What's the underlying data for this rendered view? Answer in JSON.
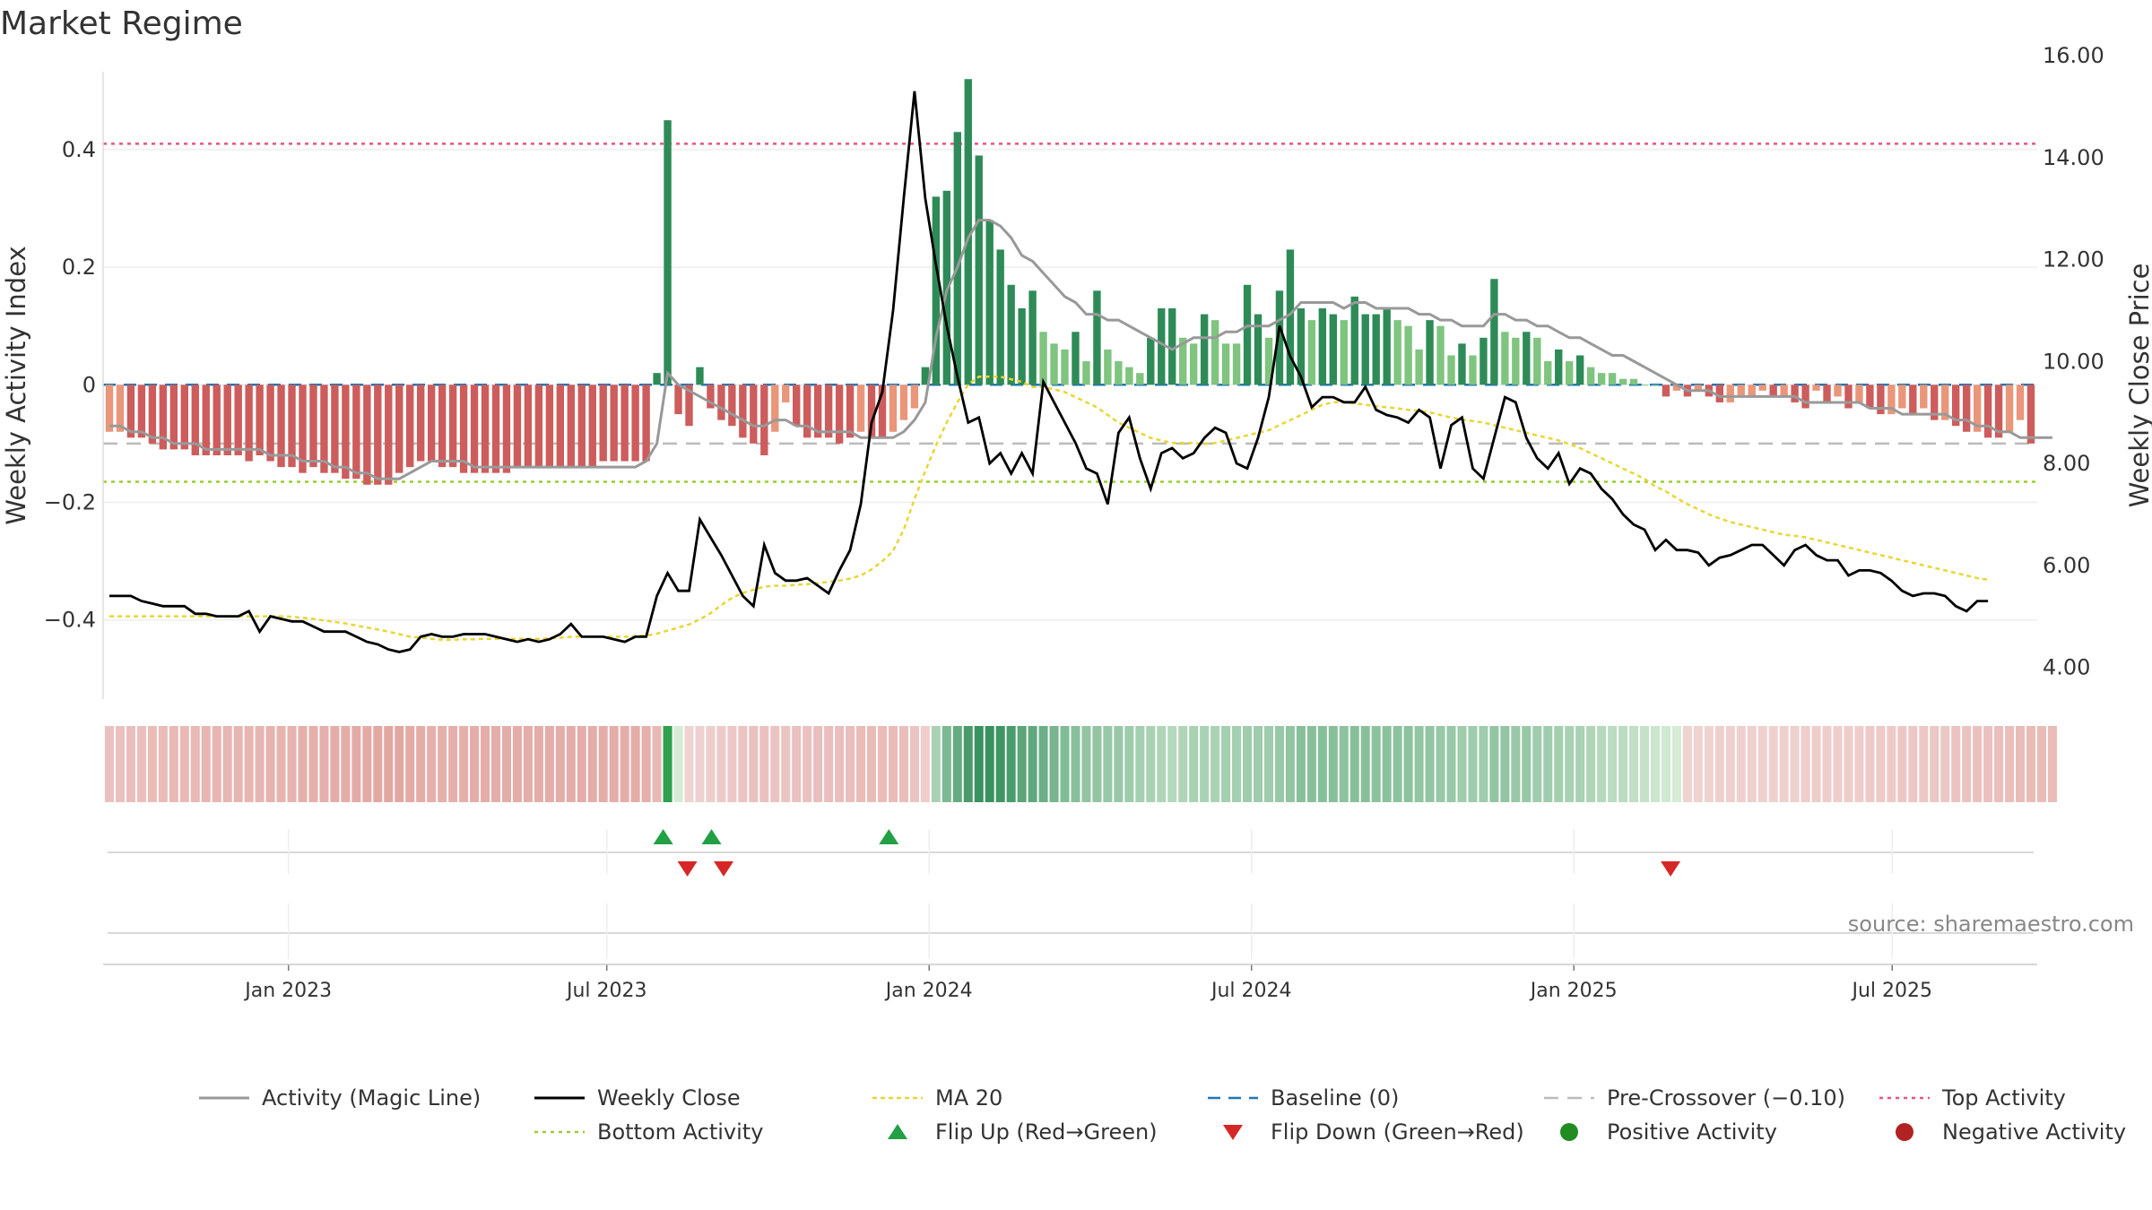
{
  "chart_data": {
    "type": "bar",
    "title": "Market Regime",
    "ylabel_left": "Weekly Activity Index",
    "ylabel_right": "Weekly Close Price",
    "source": "source: sharemaestro.com",
    "ylim_left": [
      -0.55,
      0.56
    ],
    "ylim_right": [
      3.2,
      16.0
    ],
    "yticks_left": [
      {
        "v": 0.4,
        "label": "0.4"
      },
      {
        "v": 0.2,
        "label": "0.2"
      },
      {
        "v": 0,
        "label": "0"
      },
      {
        "v": -0.2,
        "label": "−0.2"
      },
      {
        "v": -0.4,
        "label": "−0.4"
      }
    ],
    "yticks_right": [
      {
        "v": 16,
        "label": "16.00"
      },
      {
        "v": 14,
        "label": "14.00"
      },
      {
        "v": 12,
        "label": "12.00"
      },
      {
        "v": 10,
        "label": "10.00"
      },
      {
        "v": 8,
        "label": "8.00"
      },
      {
        "v": 6,
        "label": "6.00"
      },
      {
        "v": 4,
        "label": "4.00"
      }
    ],
    "x_range": [
      -15,
      225
    ],
    "xticks": [
      {
        "w": 8,
        "label": "Jan 2023"
      },
      {
        "w": 47.5,
        "label": "Jul 2023"
      },
      {
        "w": 87.5,
        "label": "Jan 2024"
      },
      {
        "w": 127.5,
        "label": "Jul 2024"
      },
      {
        "w": 167.5,
        "label": "Jan 2025"
      },
      {
        "w": 207,
        "label": "Jul 2025"
      }
    ],
    "top_activity": 0.41,
    "bottom_activity": -0.165,
    "baseline": 0,
    "pre_crossover": -0.1,
    "flips_up": [
      54.5,
      60.5,
      82.5
    ],
    "flips_down": [
      57.5,
      62,
      179.5
    ],
    "week_data_series": [
      {
        "name": "Activity Index",
        "values": [
          -0.08,
          -0.08,
          -0.09,
          -0.09,
          -0.1,
          -0.11,
          -0.11,
          -0.11,
          -0.12,
          -0.12,
          -0.12,
          -0.12,
          -0.12,
          -0.13,
          -0.12,
          -0.13,
          -0.14,
          -0.14,
          -0.15,
          -0.14,
          -0.15,
          -0.15,
          -0.16,
          -0.16,
          -0.17,
          -0.17,
          -0.17,
          -0.15,
          -0.14,
          -0.13,
          -0.13,
          -0.14,
          -0.14,
          -0.15,
          -0.15,
          -0.15,
          -0.15,
          -0.15,
          -0.14,
          -0.14,
          -0.14,
          -0.14,
          -0.14,
          -0.14,
          -0.14,
          -0.14,
          -0.13,
          -0.13,
          -0.13,
          -0.13,
          -0.13,
          0.02,
          0.45,
          -0.05,
          -0.07,
          0.03,
          -0.04,
          -0.06,
          -0.07,
          -0.09,
          -0.1,
          -0.12,
          -0.08,
          -0.03,
          -0.07,
          -0.09,
          -0.09,
          -0.09,
          -0.1,
          -0.09,
          -0.08,
          -0.09,
          -0.09,
          -0.08,
          -0.06,
          -0.04,
          0.03,
          0.32,
          0.33,
          0.43,
          0.52,
          0.39,
          0.28,
          0.23,
          0.17,
          0.13,
          0.16,
          0.09,
          0.07,
          0.06,
          0.09,
          0.04,
          0.16,
          0.06,
          0.04,
          0.03,
          0.02,
          0.08,
          0.13,
          0.13,
          0.08,
          0.07,
          0.12,
          0.11,
          0.07,
          0.07,
          0.17,
          0.12,
          0.08,
          0.16,
          0.23,
          0.13,
          0.11,
          0.13,
          0.12,
          0.11,
          0.15,
          0.12,
          0.12,
          0.13,
          0.11,
          0.1,
          0.06,
          0.11,
          0.1,
          0.05,
          0.07,
          0.05,
          0.08,
          0.18,
          0.09,
          0.08,
          0.09,
          0.08,
          0.04,
          0.06,
          0.04,
          0.05,
          0.03,
          0.02,
          0.02,
          0.01,
          0.01,
          0.0,
          0.0,
          -0.02,
          -0.01,
          -0.02,
          -0.01,
          -0.02,
          -0.03,
          -0.03,
          -0.02,
          -0.02,
          -0.01,
          -0.02,
          -0.02,
          -0.03,
          -0.04,
          -0.01,
          -0.03,
          -0.02,
          -0.04,
          -0.03,
          -0.04,
          -0.05,
          -0.05,
          -0.04,
          -0.05,
          -0.04,
          -0.06,
          -0.06,
          -0.07,
          -0.08,
          -0.08,
          -0.09,
          -0.09,
          -0.08,
          -0.06,
          -0.1
        ]
      },
      {
        "name": "Activity (Magic Line)",
        "values": [
          -0.07,
          -0.07,
          -0.08,
          -0.08,
          -0.09,
          -0.09,
          -0.1,
          -0.1,
          -0.1,
          -0.11,
          -0.11,
          -0.11,
          -0.11,
          -0.11,
          -0.11,
          -0.12,
          -0.12,
          -0.12,
          -0.13,
          -0.13,
          -0.13,
          -0.14,
          -0.14,
          -0.15,
          -0.15,
          -0.16,
          -0.16,
          -0.16,
          -0.15,
          -0.14,
          -0.13,
          -0.13,
          -0.13,
          -0.13,
          -0.14,
          -0.14,
          -0.14,
          -0.14,
          -0.14,
          -0.14,
          -0.14,
          -0.14,
          -0.14,
          -0.14,
          -0.14,
          -0.14,
          -0.14,
          -0.14,
          -0.14,
          -0.14,
          -0.13,
          -0.1,
          0.02,
          0.0,
          -0.01,
          -0.02,
          -0.03,
          -0.04,
          -0.05,
          -0.06,
          -0.07,
          -0.07,
          -0.06,
          -0.06,
          -0.07,
          -0.07,
          -0.08,
          -0.08,
          -0.08,
          -0.08,
          -0.09,
          -0.09,
          -0.09,
          -0.09,
          -0.08,
          -0.06,
          -0.03,
          0.08,
          0.16,
          0.2,
          0.25,
          0.28,
          0.28,
          0.27,
          0.25,
          0.22,
          0.21,
          0.19,
          0.17,
          0.15,
          0.14,
          0.12,
          0.12,
          0.11,
          0.11,
          0.1,
          0.09,
          0.08,
          0.07,
          0.06,
          0.07,
          0.08,
          0.08,
          0.08,
          0.09,
          0.09,
          0.1,
          0.1,
          0.1,
          0.11,
          0.12,
          0.14,
          0.14,
          0.14,
          0.14,
          0.13,
          0.14,
          0.14,
          0.13,
          0.13,
          0.13,
          0.13,
          0.12,
          0.12,
          0.11,
          0.11,
          0.1,
          0.1,
          0.1,
          0.12,
          0.12,
          0.11,
          0.11,
          0.1,
          0.1,
          0.09,
          0.08,
          0.08,
          0.07,
          0.06,
          0.05,
          0.05,
          0.04,
          0.03,
          0.02,
          0.01,
          0.0,
          -0.01,
          -0.01,
          -0.01,
          -0.02,
          -0.02,
          -0.02,
          -0.02,
          -0.02,
          -0.02,
          -0.02,
          -0.02,
          -0.03,
          -0.03,
          -0.03,
          -0.03,
          -0.03,
          -0.03,
          -0.04,
          -0.04,
          -0.04,
          -0.05,
          -0.05,
          -0.05,
          -0.05,
          -0.05,
          -0.06,
          -0.06,
          -0.07,
          -0.07,
          -0.08,
          -0.08,
          -0.09,
          -0.09,
          -0.09,
          -0.09
        ]
      },
      {
        "name": "Weekly Close",
        "values": [
          5.4,
          5.4,
          5.4,
          5.3,
          5.25,
          5.2,
          5.2,
          5.2,
          5.05,
          5.05,
          5.0,
          5.0,
          5.0,
          5.1,
          4.7,
          5.0,
          4.95,
          4.9,
          4.9,
          4.8,
          4.7,
          4.7,
          4.7,
          4.6,
          4.5,
          4.45,
          4.35,
          4.3,
          4.35,
          4.6,
          4.65,
          4.6,
          4.6,
          4.65,
          4.65,
          4.65,
          4.6,
          4.55,
          4.5,
          4.55,
          4.5,
          4.55,
          4.65,
          4.85,
          4.6,
          4.6,
          4.6,
          4.55,
          4.5,
          4.6,
          4.6,
          5.4,
          5.85,
          5.5,
          5.5,
          6.9,
          6.55,
          6.2,
          5.8,
          5.4,
          5.2,
          6.4,
          5.85,
          5.7,
          5.7,
          5.75,
          5.6,
          5.45,
          5.9,
          6.3,
          7.2,
          8.8,
          9.4,
          11.0,
          13.2,
          15.3,
          13.2,
          11.9,
          10.7,
          9.7,
          8.8,
          8.9,
          8.0,
          8.2,
          7.8,
          8.2,
          7.8,
          9.6,
          9.2,
          8.8,
          8.4,
          7.9,
          7.8,
          7.2,
          8.6,
          8.9,
          8.1,
          7.5,
          8.2,
          8.3,
          8.1,
          8.2,
          8.5,
          8.7,
          8.6,
          8.0,
          7.9,
          8.5,
          9.3,
          10.7,
          10.1,
          9.7,
          9.1,
          9.3,
          9.3,
          9.2,
          9.2,
          9.5,
          9.05,
          8.95,
          8.9,
          8.8,
          9.05,
          8.9,
          7.9,
          8.75,
          8.9,
          7.9,
          7.7,
          8.5,
          9.3,
          9.2,
          8.5,
          8.1,
          7.9,
          8.2,
          7.6,
          7.9,
          7.8,
          7.5,
          7.3,
          7.0,
          6.8,
          6.7,
          6.3,
          6.5,
          6.3,
          6.3,
          6.25,
          6.0,
          6.15,
          6.2,
          6.3,
          6.4,
          6.4,
          6.2,
          6.0,
          6.3,
          6.4,
          6.2,
          6.1,
          6.1,
          5.8,
          5.9,
          5.9,
          5.85,
          5.7,
          5.5,
          5.4,
          5.45,
          5.45,
          5.4,
          5.2,
          5.1,
          5.3,
          5.3
        ]
      },
      {
        "name": "MA 20",
        "values": [
          5.0,
          5.0,
          5.0,
          5.0,
          5.0,
          5.0,
          5.0,
          5.0,
          5.0,
          5.0,
          5.0,
          5.0,
          5.0,
          5.0,
          5.0,
          5.0,
          5.0,
          4.99,
          4.97,
          4.95,
          4.92,
          4.89,
          4.86,
          4.82,
          4.78,
          4.74,
          4.7,
          4.65,
          4.6,
          4.58,
          4.56,
          4.54,
          4.54,
          4.55,
          4.55,
          4.56,
          4.56,
          4.56,
          4.56,
          4.56,
          4.56,
          4.57,
          4.58,
          4.6,
          4.6,
          4.6,
          4.6,
          4.6,
          4.6,
          4.61,
          4.62,
          4.66,
          4.72,
          4.78,
          4.84,
          4.94,
          5.06,
          5.22,
          5.36,
          5.46,
          5.52,
          5.58,
          5.6,
          5.6,
          5.62,
          5.63,
          5.65,
          5.68,
          5.7,
          5.74,
          5.8,
          5.92,
          6.08,
          6.28,
          6.7,
          7.3,
          7.85,
          8.35,
          8.8,
          9.2,
          9.55,
          9.7,
          9.7,
          9.7,
          9.65,
          9.6,
          9.5,
          9.5,
          9.45,
          9.4,
          9.3,
          9.2,
          9.1,
          8.95,
          8.8,
          8.7,
          8.6,
          8.5,
          8.45,
          8.4,
          8.4,
          8.4,
          8.38,
          8.4,
          8.45,
          8.5,
          8.55,
          8.6,
          8.65,
          8.75,
          8.85,
          8.95,
          9.05,
          9.15,
          9.2,
          9.2,
          9.18,
          9.15,
          9.12,
          9.1,
          9.08,
          9.05,
          9.03,
          9.0,
          8.95,
          8.9,
          8.86,
          8.83,
          8.8,
          8.75,
          8.7,
          8.65,
          8.6,
          8.55,
          8.5,
          8.45,
          8.38,
          8.3,
          8.2,
          8.1,
          8.0,
          7.9,
          7.8,
          7.7,
          7.55,
          7.45,
          7.32,
          7.2,
          7.1,
          7.0,
          6.92,
          6.85,
          6.8,
          6.75,
          6.7,
          6.65,
          6.6,
          6.58,
          6.55,
          6.5,
          6.45,
          6.4,
          6.35,
          6.3,
          6.25,
          6.2,
          6.15,
          6.1,
          6.05,
          6.0,
          5.95,
          5.9,
          5.85,
          5.8,
          5.75,
          5.72
        ]
      }
    ],
    "legend": [
      {
        "label": "Activity (Magic Line)"
      },
      {
        "label": "Weekly Close"
      },
      {
        "label": "MA 20"
      },
      {
        "label": "Baseline (0)"
      },
      {
        "label": "Pre-Crossover (−0.10)"
      },
      {
        "label": "Top Activity"
      },
      {
        "label": "Bottom Activity"
      },
      {
        "label": "Flip Up (Red→Green)"
      },
      {
        "label": "Flip Down (Green→Red)"
      },
      {
        "label": "Positive Activity"
      },
      {
        "label": "Negative Activity"
      }
    ],
    "colors": {
      "pos_strong": "#2e8b57",
      "pos_light": "#7fc47f",
      "neg_strong": "#cd5c5c",
      "neg_light": "#e9967a",
      "magic": "#999999",
      "close": "#000000",
      "ma": "#e8d634",
      "baseline": "#1f77b4",
      "precross": "#bbbbbb",
      "top": "#e75480",
      "bottom": "#9acd32",
      "flip_up": "#22a045",
      "flip_down": "#d62728",
      "pos_dot": "#228b22",
      "neg_dot": "#b22222"
    }
  }
}
